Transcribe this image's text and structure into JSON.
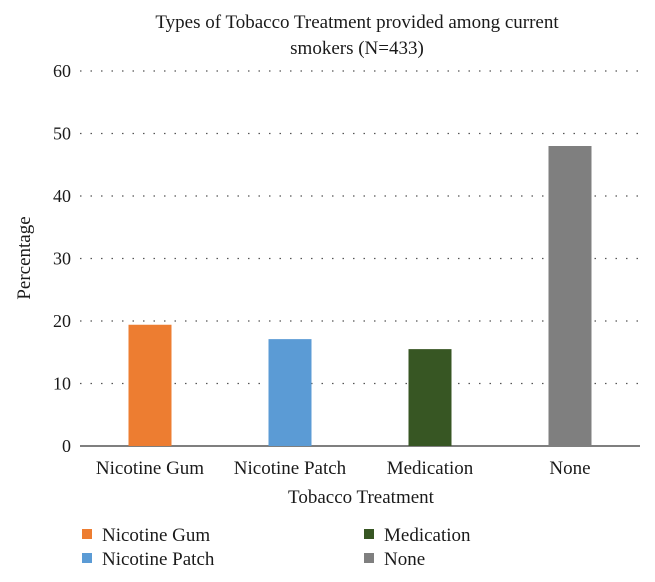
{
  "chart_data": {
    "type": "bar",
    "title_lines": [
      "Types of Tobacco Treatment provided among current",
      "smokers (N=433)"
    ],
    "xlabel": "Tobacco Treatment",
    "ylabel": "Percentage",
    "ylim": [
      0,
      60
    ],
    "yticks": [
      "0",
      "10",
      "20",
      "30",
      "40",
      "50",
      "60"
    ],
    "grid": true,
    "legend_position": "bottom",
    "categories": [
      "Nicotine Gum",
      "Nicotine Patch",
      "Medication",
      "None"
    ],
    "values": [
      19.4,
      17.1,
      15.5,
      48.0
    ],
    "colors": [
      "#ed7d31",
      "#5b9bd5",
      "#375623",
      "#7f7f7f"
    ],
    "legend": [
      "Nicotine Gum",
      "Nicotine Patch",
      "Medication",
      "None"
    ]
  }
}
